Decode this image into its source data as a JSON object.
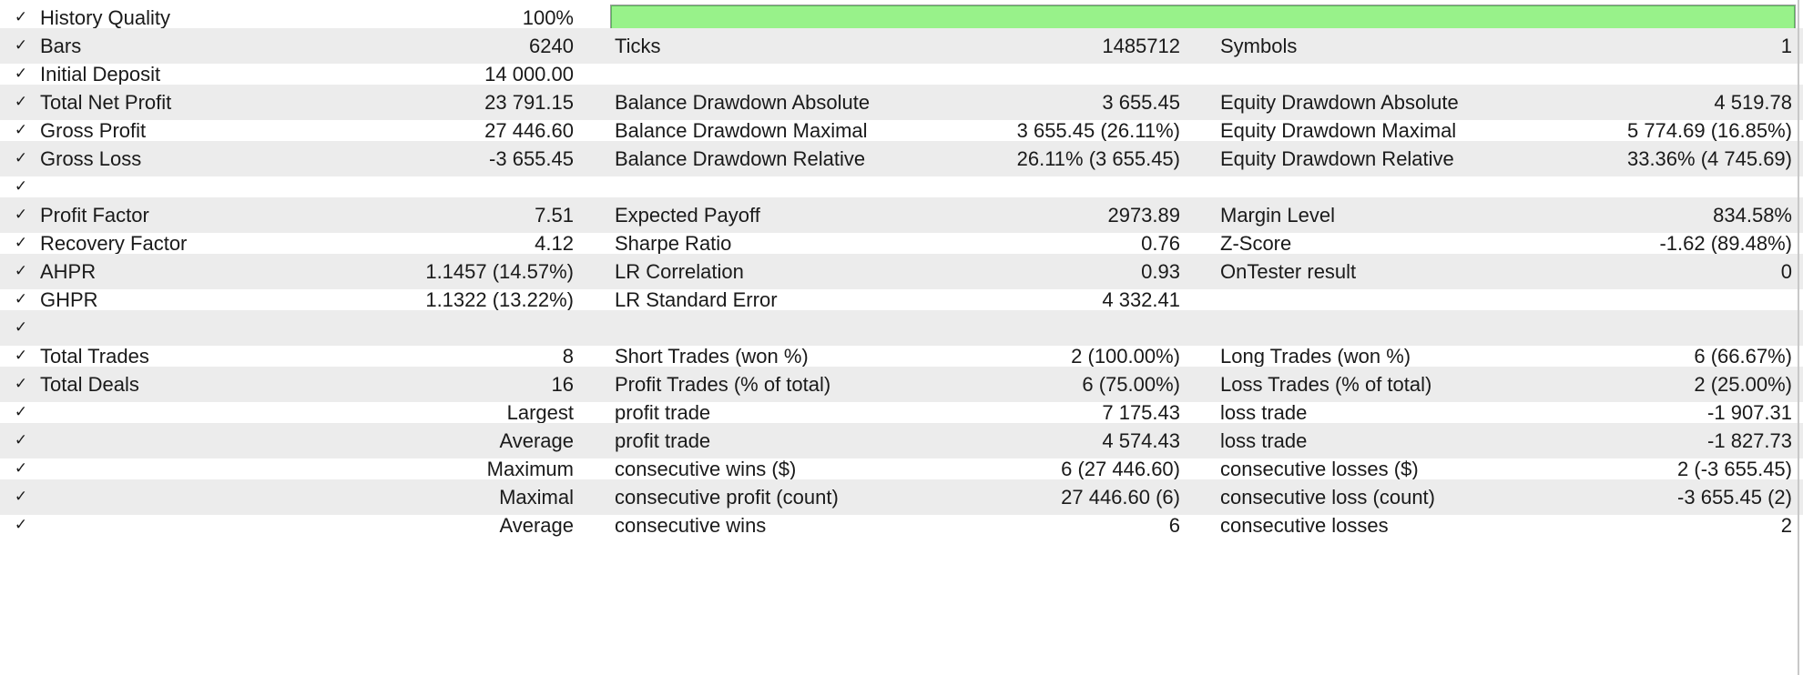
{
  "colors": {
    "row_shade": "#ececec",
    "bar_fill": "#98f28a",
    "bar_fill_border": "#5cb85c"
  },
  "icons": {
    "row_check": "checkmark-icon"
  },
  "history_quality": {
    "label": "History Quality",
    "value": "100%",
    "fill_fraction": 1.0
  },
  "rows": [
    {
      "label1": "Bars",
      "value1": "6240",
      "label2": "Ticks",
      "value2": "1485712",
      "label3": "Symbols",
      "value3": "1"
    },
    {
      "label1": "Initial Deposit",
      "value1": "14 000.00",
      "label2": "",
      "value2": "",
      "label3": "",
      "value3": ""
    },
    {
      "label1": "Total Net Profit",
      "value1": "23 791.15",
      "label2": "Balance Drawdown Absolute",
      "value2": "3 655.45",
      "label3": "Equity Drawdown Absolute",
      "value3": "4 519.78"
    },
    {
      "label1": "Gross Profit",
      "value1": "27 446.60",
      "label2": "Balance Drawdown Maximal",
      "value2": "3 655.45 (26.11%)",
      "label3": "Equity Drawdown Maximal",
      "value3": "5 774.69 (16.85%)"
    },
    {
      "label1": "Gross Loss",
      "value1": "-3 655.45",
      "label2": "Balance Drawdown Relative",
      "value2": "26.11% (3 655.45)",
      "label3": "Equity Drawdown Relative",
      "value3": "33.36% (4 745.69)"
    },
    {
      "label1": "",
      "value1": "",
      "label2": "",
      "value2": "",
      "label3": "",
      "value3": ""
    },
    {
      "label1": "Profit Factor",
      "value1": "7.51",
      "label2": "Expected Payoff",
      "value2": "2973.89",
      "label3": "Margin Level",
      "value3": "834.58%"
    },
    {
      "label1": "Recovery Factor",
      "value1": "4.12",
      "label2": "Sharpe Ratio",
      "value2": "0.76",
      "label3": "Z-Score",
      "value3": "-1.62 (89.48%)"
    },
    {
      "label1": "AHPR",
      "value1": "1.1457 (14.57%)",
      "label2": "LR Correlation",
      "value2": "0.93",
      "label3": "OnTester result",
      "value3": "0"
    },
    {
      "label1": "GHPR",
      "value1": "1.1322 (13.22%)",
      "label2": "LR Standard Error",
      "value2": "4 332.41",
      "label3": "",
      "value3": ""
    },
    {
      "label1": "",
      "value1": "",
      "label2": "",
      "value2": "",
      "label3": "",
      "value3": ""
    },
    {
      "label1": "Total Trades",
      "value1": "8",
      "label2": "Short Trades (won %)",
      "value2": "2 (100.00%)",
      "label3": "Long Trades (won %)",
      "value3": "6 (66.67%)"
    },
    {
      "label1": "Total Deals",
      "value1": "16",
      "label2": "Profit Trades (% of total)",
      "value2": "6 (75.00%)",
      "label3": "Loss Trades (% of total)",
      "value3": "2 (25.00%)"
    },
    {
      "label1": "",
      "value1": "Largest",
      "label2": "profit trade",
      "value2": "7 175.43",
      "label3": "loss trade",
      "value3": "-1 907.31"
    },
    {
      "label1": "",
      "value1": "Average",
      "label2": "profit trade",
      "value2": "4 574.43",
      "label3": "loss trade",
      "value3": "-1 827.73"
    },
    {
      "label1": "",
      "value1": "Maximum",
      "label2": "consecutive wins ($)",
      "value2": "6 (27 446.60)",
      "label3": "consecutive losses ($)",
      "value3": "2 (-3 655.45)"
    },
    {
      "label1": "",
      "value1": "Maximal",
      "label2": "consecutive profit (count)",
      "value2": "27 446.60 (6)",
      "label3": "consecutive loss (count)",
      "value3": "-3 655.45 (2)"
    },
    {
      "label1": "",
      "value1": "Average",
      "label2": "consecutive wins",
      "value2": "6",
      "label3": "consecutive losses",
      "value3": "2"
    }
  ]
}
